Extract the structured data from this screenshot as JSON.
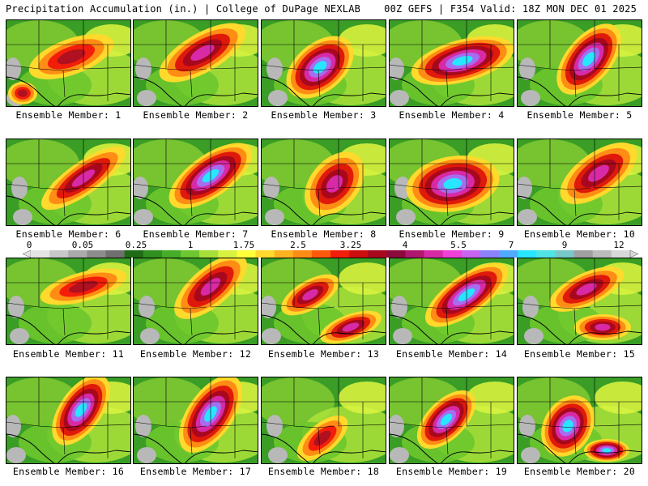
{
  "header": {
    "left_title": "Precipitation Accumulation (in.) | College of DuPage NEXLAB",
    "right_title": "00Z GEFS | F354 Valid: 18Z MON DEC 01 2025"
  },
  "colorbar": {
    "labels": [
      "0",
      "0.05",
      "0.25",
      "1",
      "1.75",
      "2.5",
      "3.25",
      "4",
      "5.5",
      "7",
      "9",
      "12"
    ],
    "colors": [
      "#e4e4e4",
      "#c8c8c8",
      "#aaaaaa",
      "#8c8c8c",
      "#707070",
      "#1f6b16",
      "#2f8f1f",
      "#45ad28",
      "#6dc72e",
      "#a7e03a",
      "#d8f23f",
      "#ffff3a",
      "#ffd92c",
      "#ffb320",
      "#ff8c14",
      "#ff5a0a",
      "#f21e0a",
      "#cc0e0e",
      "#a8081e",
      "#8c0a3c",
      "#b0186e",
      "#d82aa6",
      "#f040d8",
      "#c864f0",
      "#8a82ff",
      "#50aaff",
      "#28e6ff",
      "#50e4e4",
      "#78c8c8",
      "#a0a0a0",
      "#bcbcbc",
      "#d8d8d8"
    ]
  },
  "members": [
    {
      "label": "Ensemble Member: 1",
      "peak": "red"
    },
    {
      "label": "Ensemble Member: 2",
      "peak": "magenta"
    },
    {
      "label": "Ensemble Member: 3",
      "peak": "cyan"
    },
    {
      "label": "Ensemble Member: 4",
      "peak": "cyan"
    },
    {
      "label": "Ensemble Member: 5",
      "peak": "cyan"
    },
    {
      "label": "Ensemble Member: 6",
      "peak": "magenta"
    },
    {
      "label": "Ensemble Member: 7",
      "peak": "cyan"
    },
    {
      "label": "Ensemble Member: 8",
      "peak": "magenta"
    },
    {
      "label": "Ensemble Member: 9",
      "peak": "cyan"
    },
    {
      "label": "Ensemble Member: 10",
      "peak": "magenta"
    },
    {
      "label": "Ensemble Member: 11",
      "peak": "red"
    },
    {
      "label": "Ensemble Member: 12",
      "peak": "magenta"
    },
    {
      "label": "Ensemble Member: 13",
      "peak": "magenta"
    },
    {
      "label": "Ensemble Member: 14",
      "peak": "cyan"
    },
    {
      "label": "Ensemble Member: 15",
      "peak": "magenta"
    },
    {
      "label": "Ensemble Member: 16",
      "peak": "cyan"
    },
    {
      "label": "Ensemble Member: 17",
      "peak": "cyan"
    },
    {
      "label": "Ensemble Member: 18",
      "peak": "red"
    },
    {
      "label": "Ensemble Member: 19",
      "peak": "cyan"
    },
    {
      "label": "Ensemble Member: 20",
      "peak": "cyan"
    }
  ]
}
